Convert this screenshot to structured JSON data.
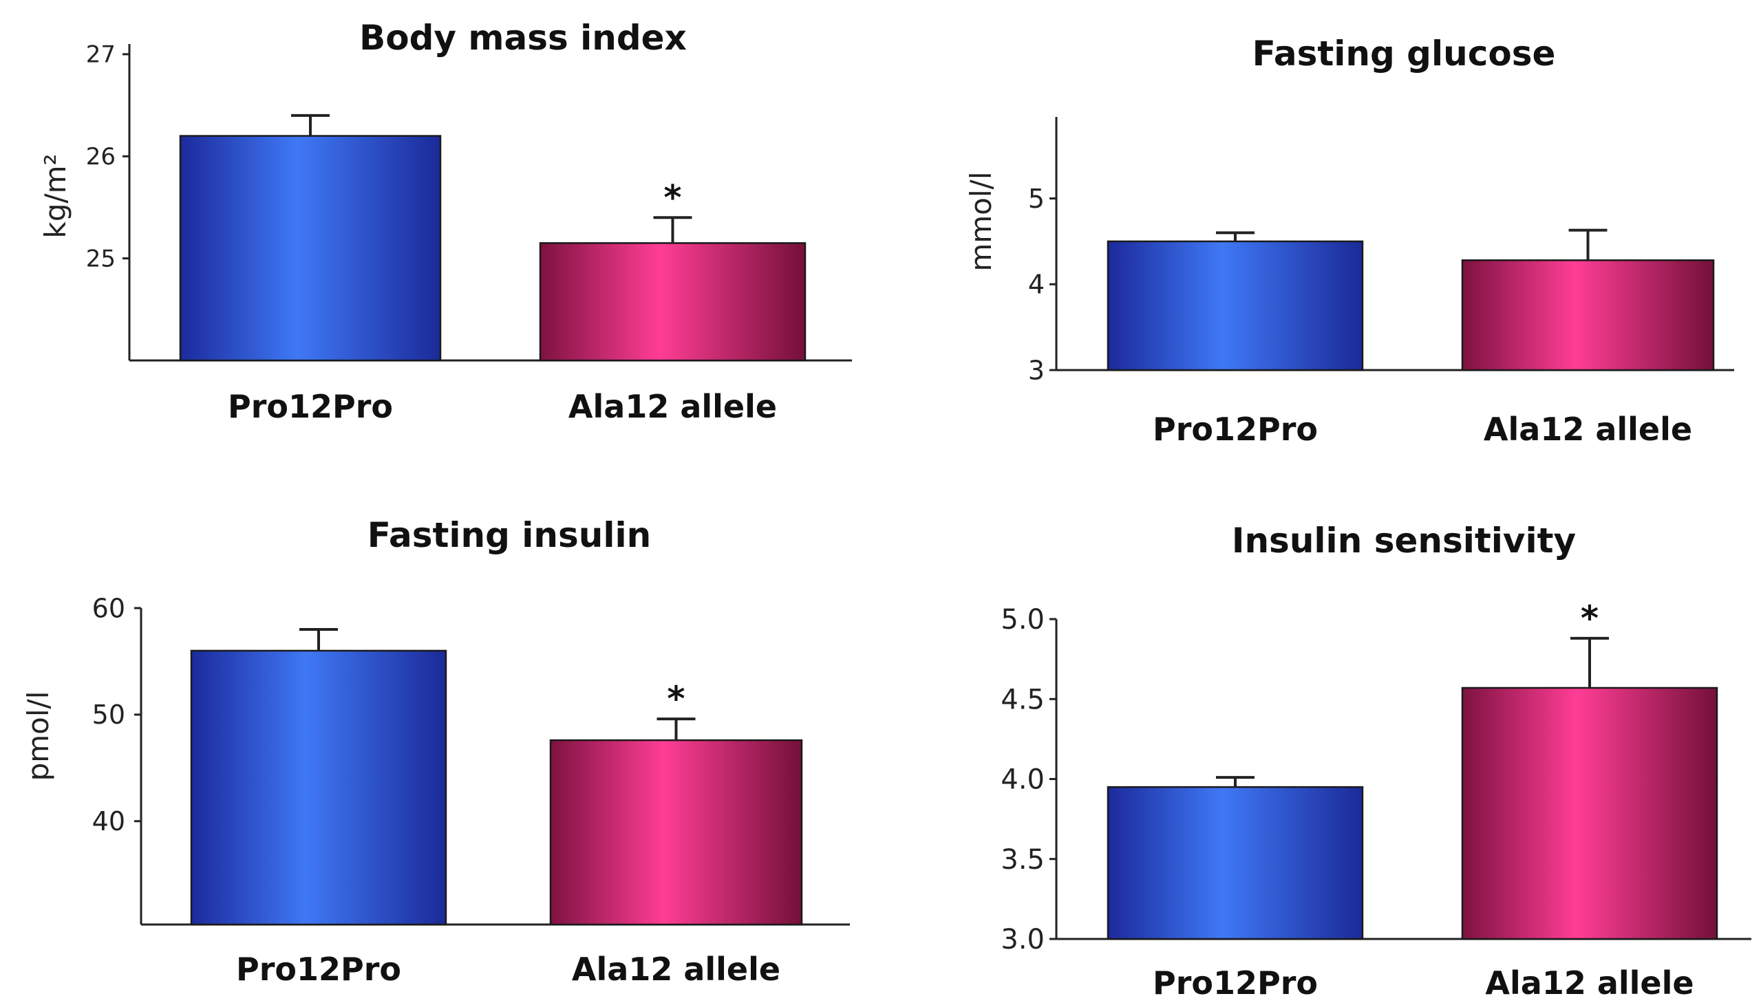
{
  "chart_data": [
    {
      "type": "bar",
      "title": "Body mass index",
      "ylabel": "kg/m²",
      "categories": [
        "Pro12Pro",
        "Ala12 allele"
      ],
      "values": [
        26.2,
        25.15
      ],
      "errors": [
        0.2,
        0.25
      ],
      "significance": [
        "",
        "*"
      ],
      "yticks": [
        25,
        26,
        27
      ],
      "ytick_labels": [
        "25",
        "26",
        "27"
      ],
      "ylim": [
        24,
        27.1
      ]
    },
    {
      "type": "bar",
      "title": "Fasting glucose",
      "ylabel": "mmol/l",
      "categories": [
        "Pro12Pro",
        "Ala12 allele"
      ],
      "values": [
        4.5,
        4.28
      ],
      "errors": [
        0.1,
        0.35
      ],
      "significance": [
        "",
        ""
      ],
      "yticks": [
        3,
        4,
        5
      ],
      "ytick_labels": [
        "3",
        "4",
        "5"
      ],
      "ylim": [
        3,
        5.95
      ]
    },
    {
      "type": "bar",
      "title": "Fasting insulin",
      "ylabel": "pmol/l",
      "categories": [
        "Pro12Pro",
        "Ala12 allele"
      ],
      "values": [
        56,
        47.6
      ],
      "errors": [
        2,
        2
      ],
      "significance": [
        "",
        "*"
      ],
      "yticks": [
        40,
        50,
        60
      ],
      "ytick_labels": [
        "40",
        "50",
        "60"
      ],
      "ylim": [
        30.3,
        60
      ]
    },
    {
      "type": "bar",
      "title": "Insulin sensitivity",
      "ylabel": "",
      "categories": [
        "Pro12Pro",
        "Ala12 allele"
      ],
      "values": [
        3.95,
        4.57
      ],
      "errors": [
        0.06,
        0.31
      ],
      "significance": [
        "",
        "*"
      ],
      "yticks": [
        3.0,
        3.5,
        4.0,
        4.5,
        5.0
      ],
      "ytick_labels": [
        "3.0",
        "3.5",
        "4.0",
        "4.5",
        "5.0"
      ],
      "ylim": [
        3.0,
        5.0
      ]
    }
  ],
  "colors": {
    "pro12pro_gradient": [
      "#1a2fa8",
      "#3a6cf0",
      "#1c2e9e"
    ],
    "ala12_gradient": [
      "#8a1447",
      "#ff3a93",
      "#7a103e"
    ]
  }
}
